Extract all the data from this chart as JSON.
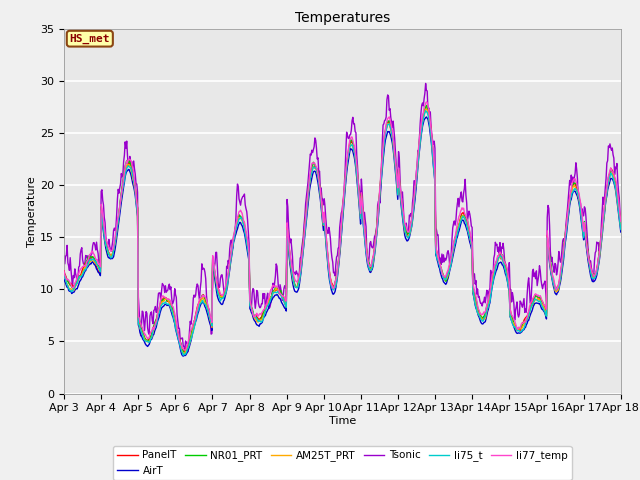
{
  "title": "Temperatures",
  "xlabel": "Time",
  "ylabel": "Temperature",
  "ylim": [
    0,
    35
  ],
  "background_color": "#e8e8e8",
  "plot_bg_color": "#f0f0f0",
  "series": {
    "PanelT": {
      "color": "#ff0000",
      "lw": 1.0,
      "zorder": 3
    },
    "AirT": {
      "color": "#0000cc",
      "lw": 1.0,
      "zorder": 3
    },
    "NR01_PRT": {
      "color": "#00cc00",
      "lw": 1.0,
      "zorder": 3
    },
    "AM25T_PRT": {
      "color": "#ffaa00",
      "lw": 1.0,
      "zorder": 3
    },
    "Tsonic": {
      "color": "#9900cc",
      "lw": 1.0,
      "zorder": 2
    },
    "li75_t": {
      "color": "#00cccc",
      "lw": 1.0,
      "zorder": 3
    },
    "li77_temp": {
      "color": "#ff44cc",
      "lw": 1.0,
      "zorder": 3
    }
  },
  "xtick_labels": [
    "Apr 3",
    "Apr 4",
    "Apr 5",
    "Apr 6",
    "Apr 7",
    "Apr 8",
    "Apr 9",
    "Apr 10",
    "Apr 11",
    "Apr 12",
    "Apr 13",
    "Apr 14",
    "Apr 15",
    "Apr 16",
    "Apr 17",
    "Apr 18"
  ],
  "ytick_labels": [
    0,
    5,
    10,
    15,
    20,
    25,
    30,
    35
  ],
  "annotation_text": "HS_met",
  "annotation_facecolor": "#ffffaa",
  "annotation_edgecolor": "#8B4513",
  "annotation_textcolor": "#8B0000",
  "legend_labels": [
    "PanelT",
    "AirT",
    "NR01_PRT",
    "AM25T_PRT",
    "Tsonic",
    "li75_t",
    "li77_temp"
  ]
}
